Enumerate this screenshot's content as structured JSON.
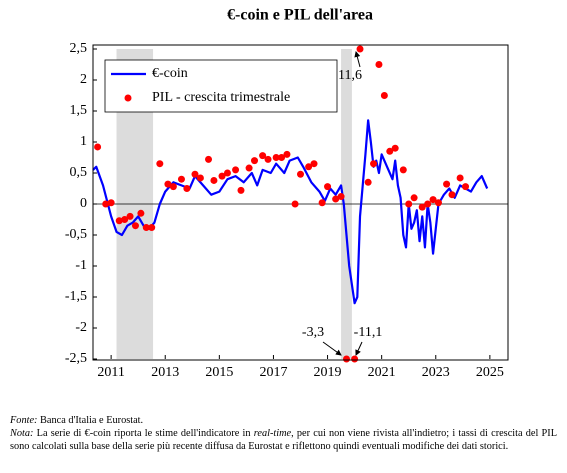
{
  "chart_data": {
    "type": "line",
    "title": "€-coin e PIL dell'area",
    "xlim": [
      2010.33,
      2025.67
    ],
    "xticks": [
      2011,
      2013,
      2015,
      2017,
      2019,
      2021,
      2023,
      2025
    ],
    "ylim": [
      -2.5,
      2.5
    ],
    "yticks": [
      {
        "value": 2.5,
        "label": "2,5"
      },
      2,
      {
        "value": 1.5,
        "label": "1,5"
      },
      1,
      {
        "value": 0.5,
        "label": "0,5"
      },
      0,
      {
        "value": -0.5,
        "label": "-0,5"
      },
      -1,
      {
        "value": -1.5,
        "label": "-1,5"
      },
      -2,
      {
        "value": -2.5,
        "label": "-2,5"
      }
    ],
    "grid": false,
    "legend": "upper left",
    "shaded_periods": [
      [
        2011.2,
        2012.55
      ],
      [
        2019.5,
        2019.9
      ]
    ],
    "shade_color": "#dcdcdc",
    "series": [
      {
        "name": "€-coin",
        "type": "line",
        "color": "#0000ff",
        "x": [
          2010.33,
          2010.45,
          2010.7,
          2011.0,
          2011.2,
          2011.4,
          2011.6,
          2011.8,
          2012.0,
          2012.2,
          2012.4,
          2012.6,
          2012.8,
          2013.0,
          2013.3,
          2013.6,
          2013.9,
          2014.1,
          2014.4,
          2014.7,
          2015.0,
          2015.3,
          2015.6,
          2015.9,
          2016.2,
          2016.4,
          2016.6,
          2016.9,
          2017.1,
          2017.4,
          2017.6,
          2017.9,
          2018.1,
          2018.4,
          2018.7,
          2018.9,
          2019.1,
          2019.3,
          2019.5,
          2019.6,
          2019.7,
          2019.8,
          2019.9,
          2020.0,
          2020.1,
          2020.2,
          2020.3,
          2020.4,
          2020.5,
          2020.6,
          2020.7,
          2020.8,
          2020.9,
          2021.0,
          2021.2,
          2021.4,
          2021.5,
          2021.6,
          2021.7,
          2021.8,
          2021.9,
          2022.0,
          2022.1,
          2022.2,
          2022.3,
          2022.4,
          2022.5,
          2022.6,
          2022.7,
          2022.8,
          2022.9,
          2023.0,
          2023.1,
          2023.3,
          2023.5,
          2023.7,
          2023.9,
          2024.1,
          2024.3,
          2024.5,
          2024.7,
          2024.9
        ],
        "values": [
          0.55,
          0.6,
          0.3,
          -0.2,
          -0.45,
          -0.5,
          -0.35,
          -0.3,
          -0.2,
          -0.35,
          -0.4,
          -0.3,
          0.0,
          0.2,
          0.35,
          0.3,
          0.25,
          0.45,
          0.3,
          0.15,
          0.2,
          0.4,
          0.45,
          0.35,
          0.5,
          0.3,
          0.55,
          0.5,
          0.65,
          0.5,
          0.7,
          0.75,
          0.6,
          0.35,
          0.2,
          0.05,
          0.25,
          0.15,
          0.3,
          0.0,
          -0.5,
          -1.0,
          -1.3,
          -1.6,
          -1.5,
          -0.2,
          0.3,
          0.8,
          1.35,
          1.0,
          0.6,
          0.7,
          0.5,
          0.8,
          0.6,
          0.4,
          0.7,
          0.3,
          0.1,
          -0.5,
          -0.7,
          0.0,
          -0.4,
          -0.3,
          -0.1,
          -0.6,
          -0.2,
          -0.7,
          0.0,
          -0.3,
          -0.8,
          -0.4,
          0.0,
          0.15,
          0.25,
          0.1,
          0.3,
          0.25,
          0.2,
          0.35,
          0.45,
          0.25
        ]
      },
      {
        "name": "PIL - crescita trimestrale",
        "type": "scatter",
        "color": "#ff0000",
        "x": [
          2010.5,
          2010.8,
          2011.0,
          2011.3,
          2011.5,
          2011.7,
          2011.9,
          2012.1,
          2012.3,
          2012.5,
          2012.8,
          2013.1,
          2013.3,
          2013.6,
          2013.8,
          2014.1,
          2014.3,
          2014.6,
          2014.8,
          2015.1,
          2015.3,
          2015.6,
          2015.8,
          2016.1,
          2016.3,
          2016.6,
          2016.8,
          2017.1,
          2017.3,
          2017.5,
          2017.8,
          2018.0,
          2018.3,
          2018.5,
          2018.8,
          2019.0,
          2019.3,
          2019.5,
          2019.7,
          2020.0,
          2020.2,
          2020.5,
          2020.7,
          2020.9,
          2021.1,
          2021.3,
          2021.5,
          2021.8,
          2022.0,
          2022.2,
          2022.5,
          2022.7,
          2022.9,
          2023.1,
          2023.4,
          2023.6,
          2023.9,
          2024.1
        ],
        "values": [
          0.92,
          0.0,
          0.02,
          -0.27,
          -0.25,
          -0.2,
          -0.35,
          -0.15,
          -0.38,
          -0.38,
          0.65,
          0.32,
          0.28,
          0.4,
          0.25,
          0.48,
          0.42,
          0.72,
          0.38,
          0.45,
          0.5,
          0.55,
          0.22,
          0.58,
          0.7,
          0.78,
          0.72,
          0.75,
          0.75,
          0.8,
          0.0,
          0.48,
          0.6,
          0.65,
          0.02,
          0.28,
          0.08,
          0.12,
          -2.5,
          -2.5,
          2.5,
          0.35,
          0.65,
          2.25,
          1.75,
          0.85,
          0.9,
          0.55,
          0.0,
          0.1,
          -0.05,
          0.0,
          0.07,
          0.02,
          0.32,
          0.15,
          0.42,
          0.28
        ]
      }
    ],
    "annotations": [
      "11,6",
      "-3,3",
      "-11,1"
    ]
  },
  "footer": {
    "source_label": "Fonte:",
    "source": "Banca d'Italia e Eurostat.",
    "note_label": "Nota:",
    "note_1": "La serie di €-coin riporta le stime dell'indicatore in",
    "note_italic": "real-time",
    "note_2": ", per cui non viene rivista all'indietro; i tassi di crescita del PIL sono calcolati sulla base della serie più recente diffusa da Eurostat e riflettono quindi eventuali modifiche dei dati storici."
  }
}
